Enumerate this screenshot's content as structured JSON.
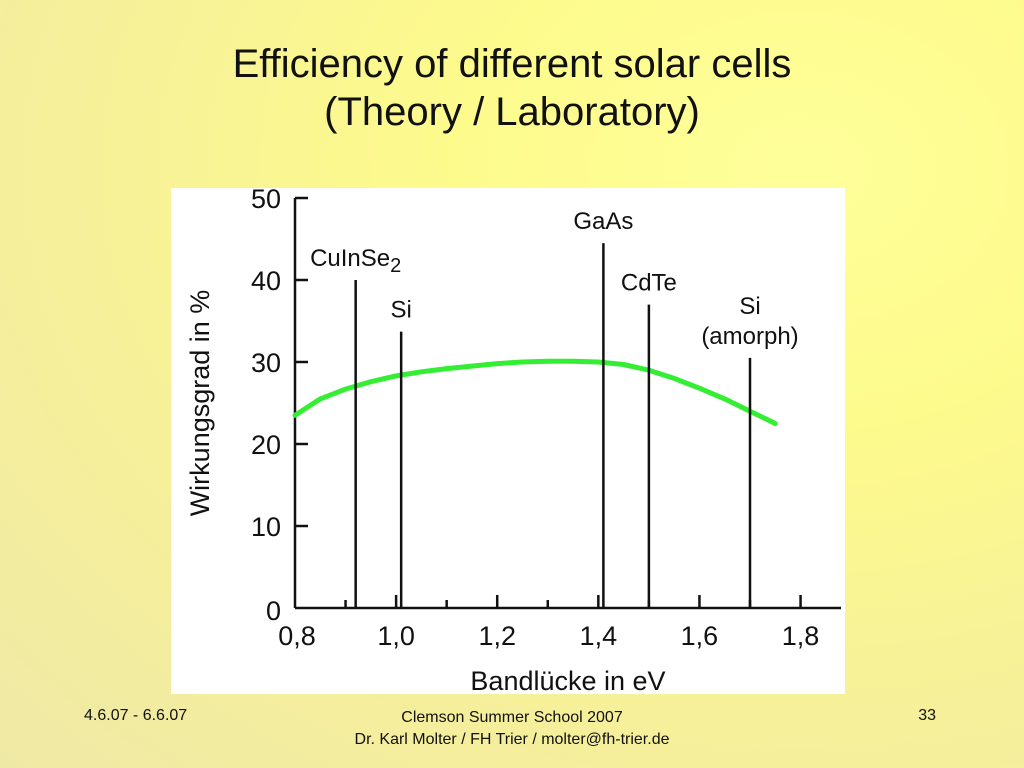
{
  "slide": {
    "title_line1": "Efficiency of different solar cells",
    "title_line2": "(Theory / Laboratory)"
  },
  "footer": {
    "date": "4.6.07 - 6.6.07",
    "event": "Clemson Summer School 2007",
    "author": "Dr. Karl Molter / FH Trier / molter@fh-trier.de",
    "page_number": "33"
  },
  "colors": {
    "background": "#fdfb8c",
    "theory_curve": "#33ee33",
    "axis": "#111111"
  },
  "chart_data": {
    "type": "line",
    "xlabel": "Bandlücke in eV",
    "ylabel": "Wirkungsgrad in %",
    "xlim": [
      0.8,
      1.88
    ],
    "ylim": [
      0,
      50
    ],
    "x_ticks": [
      "0,8",
      "1,0",
      "1,2",
      "1,4",
      "1,6",
      "1,8"
    ],
    "x_tick_values": [
      0.8,
      1.0,
      1.2,
      1.4,
      1.6,
      1.8
    ],
    "y_ticks": [
      "0",
      "10",
      "20",
      "30",
      "40",
      "50"
    ],
    "y_tick_values": [
      0,
      10,
      20,
      30,
      40,
      50
    ],
    "grid": false,
    "curve": {
      "x": [
        0.8,
        0.85,
        0.9,
        0.95,
        1.0,
        1.05,
        1.1,
        1.15,
        1.2,
        1.25,
        1.3,
        1.35,
        1.4,
        1.45,
        1.5,
        1.55,
        1.6,
        1.65,
        1.7,
        1.75
      ],
      "y": [
        23.5,
        25.5,
        26.7,
        27.6,
        28.3,
        28.8,
        29.2,
        29.5,
        29.8,
        30.0,
        30.1,
        30.1,
        30.0,
        29.7,
        29.0,
        28.0,
        26.8,
        25.5,
        24.0,
        22.5
      ]
    },
    "cells": [
      {
        "label": "CuInSe",
        "subscript": "2",
        "x": 0.92,
        "y": 40
      },
      {
        "label": "Si",
        "subscript": "",
        "x": 1.01,
        "y": 33.7
      },
      {
        "label": "GaAs",
        "subscript": "",
        "x": 1.41,
        "y": 44.5
      },
      {
        "label": "CdTe",
        "subscript": "",
        "x": 1.5,
        "y": 37
      },
      {
        "label": "Si",
        "label2": "(amorph)",
        "subscript": "",
        "x": 1.7,
        "y": 30.5
      }
    ]
  }
}
